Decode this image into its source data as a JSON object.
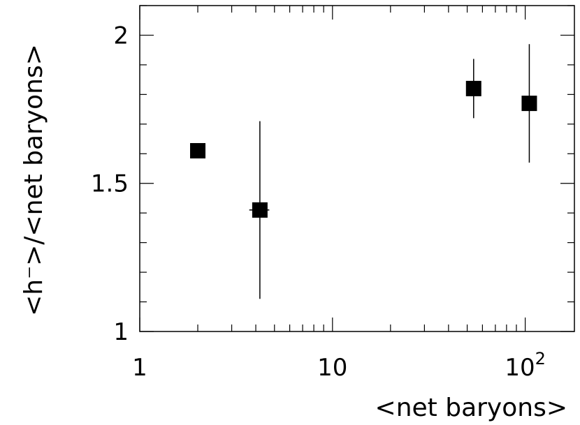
{
  "chart_data": {
    "type": "scatter",
    "title": "",
    "xlabel": "<net baryons>",
    "ylabel": "<h⁻>/<net baryons>",
    "x_scale": "log",
    "xlim": [
      1,
      180
    ],
    "ylim": [
      1,
      2.1
    ],
    "x_ticks": [
      {
        "value": 1,
        "label": "1"
      },
      {
        "value": 10,
        "label": "10"
      },
      {
        "value": 100,
        "label": "10",
        "exponent": "2"
      }
    ],
    "y_ticks": [
      {
        "value": 1,
        "label": "1"
      },
      {
        "value": 1.5,
        "label": "1.5"
      },
      {
        "value": 2,
        "label": "2"
      }
    ],
    "grid": false,
    "legend": "none",
    "marker": "filled-square",
    "color": "#000000",
    "points": [
      {
        "x": 2.0,
        "y": 1.61,
        "y_err": 0.02,
        "x_err_low": 0.0,
        "x_err_high": 0.0
      },
      {
        "x": 4.2,
        "y": 1.41,
        "y_err": 0.3,
        "x_err_low": 0.5,
        "x_err_high": 0.5
      },
      {
        "x": 54,
        "y": 1.82,
        "y_err": 0.1,
        "x_err_low": 0,
        "x_err_high": 0
      },
      {
        "x": 105,
        "y": 1.77,
        "y_err": 0.2,
        "x_err_low": 0,
        "x_err_high": 0
      }
    ]
  }
}
